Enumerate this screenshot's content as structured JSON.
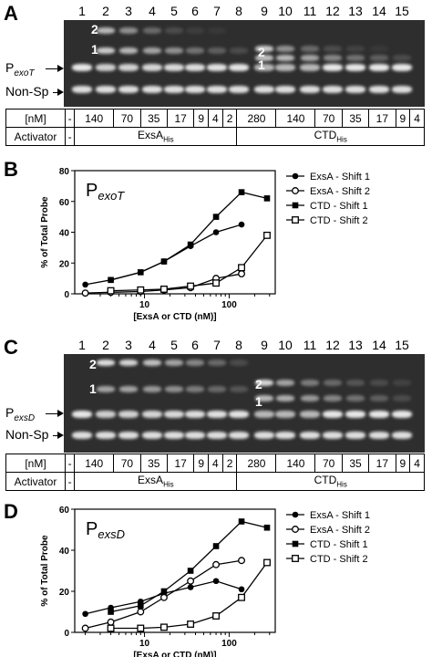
{
  "panels": {
    "A": {
      "letter": "A"
    },
    "B": {
      "letter": "B"
    },
    "C": {
      "letter": "C"
    },
    "D": {
      "letter": "D"
    }
  },
  "gel_A": {
    "promoter_main": "P",
    "promoter_sub": "exoT",
    "nonsp": "Non-Sp",
    "shift_labels_left": [
      "2",
      "1"
    ],
    "shift_labels_right": [
      "2",
      "1"
    ]
  },
  "gel_C": {
    "promoter_main": "P",
    "promoter_sub": "exsD",
    "nonsp": "Non-Sp",
    "shift_labels_left": [
      "2",
      "1"
    ],
    "shift_labels_right": [
      "2",
      "1"
    ]
  },
  "lanes": [
    "1",
    "2",
    "3",
    "4",
    "5",
    "6",
    "7",
    "8",
    "9",
    "10",
    "11",
    "12",
    "13",
    "14",
    "15"
  ],
  "conc_row": {
    "label": "[nM]",
    "values": [
      "-",
      "140",
      "70",
      "35",
      "17",
      "9",
      "4",
      "2",
      "280",
      "140",
      "70",
      "35",
      "17",
      "9",
      "4"
    ]
  },
  "activator_row": {
    "label": "Activator",
    "none": "-",
    "exsA_main": "ExsA",
    "exsA_sub": "His",
    "ctd_main": "CTD",
    "ctd_sub": "His"
  },
  "chart_data": [
    {
      "type": "line",
      "panel": "B",
      "title_main": "P",
      "title_sub": "exoT",
      "xlabel": "[ExsA or CTD (nM)]",
      "ylabel": "% of Total Probe",
      "xscale": "log",
      "xlim": [
        1.5,
        350
      ],
      "ylim": [
        0,
        80
      ],
      "yticks": [
        0,
        20,
        40,
        60,
        80
      ],
      "xticks": [
        10,
        100
      ],
      "legend": "top-right",
      "series": [
        {
          "name": "ExsA - Shift 1",
          "marker": "filled-circle",
          "x": [
            2,
            4,
            9,
            17,
            35,
            70,
            140
          ],
          "y": [
            6,
            9,
            14,
            21,
            31,
            40,
            45
          ]
        },
        {
          "name": "ExsA - Shift 2",
          "marker": "open-circle",
          "x": [
            2,
            4,
            9,
            17,
            35,
            70,
            140
          ],
          "y": [
            0.5,
            1,
            1.5,
            2.5,
            4,
            10,
            13
          ]
        },
        {
          "name": "CTD - Shift 1",
          "marker": "filled-square",
          "x": [
            4,
            9,
            17,
            35,
            70,
            140,
            280
          ],
          "y": [
            9,
            14,
            21,
            32,
            50,
            66,
            62
          ]
        },
        {
          "name": "CTD - Shift 2",
          "marker": "open-square",
          "x": [
            4,
            9,
            17,
            35,
            70,
            140,
            280
          ],
          "y": [
            2,
            2.5,
            3,
            5,
            7,
            17,
            38
          ]
        }
      ]
    },
    {
      "type": "line",
      "panel": "D",
      "title_main": "P",
      "title_sub": "exsD",
      "xlabel": "[ExsA or CTD (nM)]",
      "ylabel": "% of Total Probe",
      "xscale": "log",
      "xlim": [
        1.5,
        350
      ],
      "ylim": [
        0,
        60
      ],
      "yticks": [
        0,
        20,
        40,
        60
      ],
      "xticks": [
        10,
        100
      ],
      "legend": "top-right",
      "series": [
        {
          "name": "ExsA - Shift 1",
          "marker": "filled-circle",
          "x": [
            2,
            4,
            9,
            17,
            35,
            70,
            140
          ],
          "y": [
            9,
            12,
            15,
            19,
            22,
            25,
            21
          ]
        },
        {
          "name": "ExsA - Shift 2",
          "marker": "open-circle",
          "x": [
            2,
            4,
            9,
            17,
            35,
            70,
            140
          ],
          "y": [
            2,
            5,
            10,
            17,
            25,
            33,
            35
          ]
        },
        {
          "name": "CTD - Shift 1",
          "marker": "filled-square",
          "x": [
            4,
            9,
            17,
            35,
            70,
            140,
            280
          ],
          "y": [
            10,
            13,
            20,
            30,
            42,
            54,
            51
          ]
        },
        {
          "name": "CTD - Shift 2",
          "marker": "open-square",
          "x": [
            4,
            9,
            17,
            35,
            70,
            140,
            280
          ],
          "y": [
            2,
            2,
            2.5,
            4,
            8,
            17,
            34
          ]
        }
      ]
    }
  ],
  "colors": {
    "gel_bg": "#2e2e2e",
    "band": "#f2f2f2"
  }
}
